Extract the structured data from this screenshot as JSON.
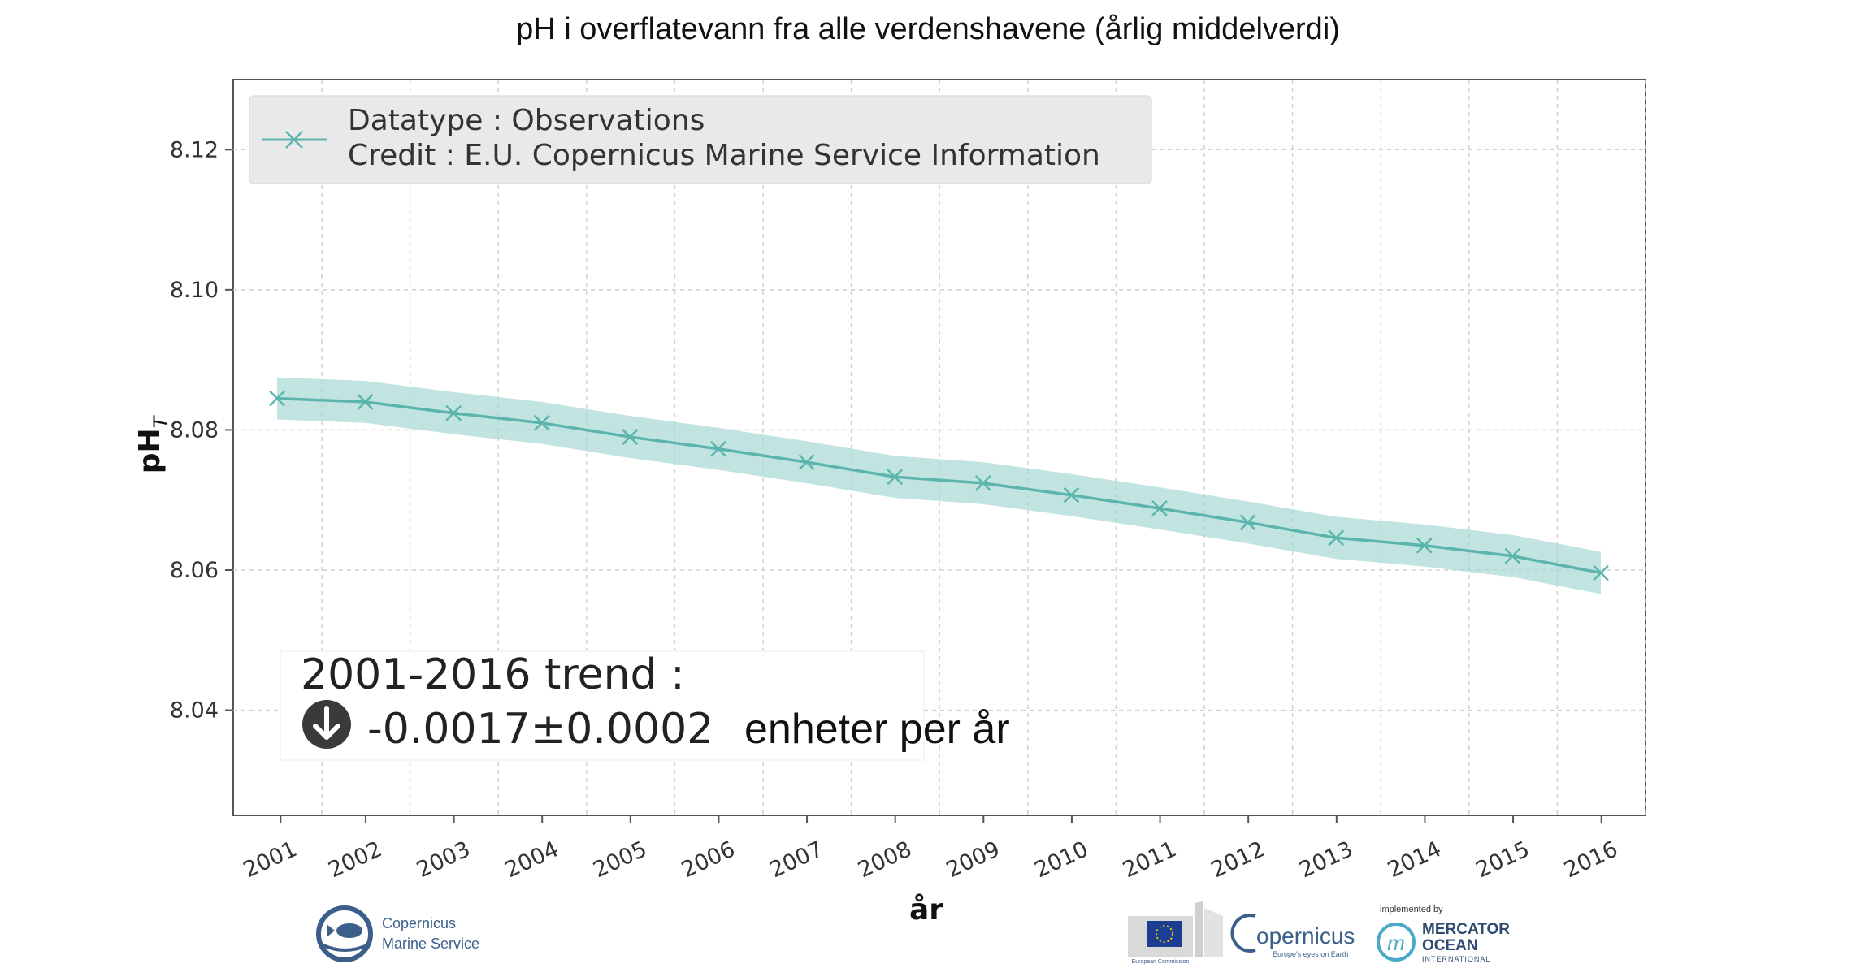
{
  "chart_data": {
    "type": "line",
    "title": "pH i overflatevann fra alle verdenshavene (årlig middelverdi)",
    "xlabel": "år",
    "ylabel": "pH",
    "ylabel_subscript": "T",
    "categories": [
      "2001",
      "2002",
      "2003",
      "2004",
      "2005",
      "2006",
      "2007",
      "2008",
      "2009",
      "2010",
      "2011",
      "2012",
      "2013",
      "2014",
      "2015",
      "2016"
    ],
    "yticks": [
      "8.04",
      "8.06",
      "8.08",
      "8.10",
      "8.12"
    ],
    "ylim": [
      8.025,
      8.13
    ],
    "grid": true,
    "series": [
      {
        "name": "Datatype : Observations",
        "values": [
          8.0845,
          8.084,
          8.0824,
          8.081,
          8.079,
          8.0773,
          8.0754,
          8.0733,
          8.0724,
          8.0707,
          8.0688,
          8.0668,
          8.0646,
          8.0635,
          8.062,
          8.0596
        ],
        "lower": [
          8.0815,
          8.081,
          8.0794,
          8.078,
          8.076,
          8.0743,
          8.0724,
          8.0703,
          8.0694,
          8.0677,
          8.0658,
          8.0638,
          8.0616,
          8.0605,
          8.059,
          8.0566
        ],
        "upper": [
          8.0875,
          8.087,
          8.0854,
          8.084,
          8.082,
          8.0803,
          8.0784,
          8.0763,
          8.0754,
          8.0737,
          8.0718,
          8.0698,
          8.0676,
          8.0665,
          8.065,
          8.0626
        ],
        "color": "#5bb5ad",
        "band_color": "#a8d8d3"
      }
    ],
    "legend": {
      "placement": "top-left",
      "line1": "Datatype : Observations",
      "line2": "Credit : E.U. Copernicus Marine Service Information"
    },
    "annotation": {
      "trend_label": "2001-2016 trend :",
      "trend_value": "-0.0017±0.0002",
      "trend_units": "enheter per år",
      "trend_icon": "arrow-down-circle-icon"
    }
  },
  "logos": {
    "cmems_line1": "Copernicus",
    "cmems_line2": "Marine Service",
    "copernicus": "opernicus",
    "copernicus_tagline": "Europe's eyes on Earth",
    "implemented_by": "implemented by",
    "mercator_line1": "MERCATOR",
    "mercator_line2": "OCEAN",
    "mercator_line3": "INTERNATIONAL",
    "eu_caption": "European Commission"
  },
  "colors": {
    "series": "#5bb5ad",
    "band": "#a8d8d3",
    "grid": "#d0d0d0",
    "logo_blue": "#3b5f8a"
  }
}
